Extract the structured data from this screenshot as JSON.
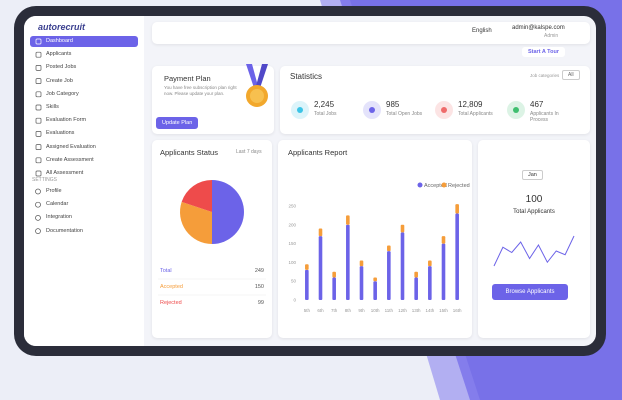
{
  "sidebar": {
    "logo": "autorecruit",
    "menu": [
      "Dashboard",
      "Applicants",
      "Posted Jobs",
      "Create Job",
      "Job Category",
      "Skills",
      "Evaluation Form",
      "Evaluations",
      "Assigned Evaluation",
      "Create Assessment",
      "All Assessment"
    ],
    "settings_heading": "SETTINGS",
    "settings": [
      "Profile",
      "Calendar",
      "Integration",
      "Documentation"
    ]
  },
  "header": {
    "language": "English",
    "email": "admin@kalspe.com",
    "role": "Admin",
    "tour_button": "Start A Tour"
  },
  "payment_plan": {
    "title": "Payment Plan",
    "text": "You have free subscription plan right now. Please update your plan.",
    "button": "Update Plan"
  },
  "statistics": {
    "title": "Statistics",
    "filter_label": "Job categories",
    "filter": "All",
    "items": [
      {
        "value": "2,245",
        "label": "Total Jobs",
        "color": "#3cc4e6"
      },
      {
        "value": "985",
        "label": "Total Open Jobs",
        "color": "#6c63e8"
      },
      {
        "value": "12,809",
        "label": "Total Applicants",
        "color": "#ef6b6b"
      },
      {
        "value": "467",
        "label": "Applicants In Process",
        "color": "#3fbf6f"
      }
    ]
  },
  "applicants_status": {
    "title": "Applicants Status",
    "period": "Last 7 days",
    "rows": [
      {
        "label": "Total",
        "value": 249,
        "color": "#6c63e8"
      },
      {
        "label": "Accepted",
        "value": 150,
        "color": "#f59d3a"
      },
      {
        "label": "Rejected",
        "value": 99,
        "color": "#ee4b4b"
      }
    ]
  },
  "applicants_report": {
    "title": "Applicants Report",
    "ylim": [
      0,
      250
    ],
    "yticks": [
      0,
      50,
      100,
      150,
      200,
      250
    ],
    "categories": [
      "5th",
      "6th",
      "7th",
      "8th",
      "9th",
      "10th",
      "11th",
      "12th",
      "13th",
      "14th",
      "15th",
      "16th"
    ],
    "series": [
      {
        "name": "Accepted",
        "color": "#6c63e8",
        "values": [
          80,
          170,
          60,
          200,
          90,
          50,
          130,
          180,
          60,
          90,
          150,
          230
        ]
      },
      {
        "name": "Rejected",
        "color": "#f59d3a",
        "values": [
          15,
          20,
          15,
          25,
          15,
          10,
          15,
          20,
          15,
          15,
          20,
          25
        ]
      }
    ]
  },
  "total_applicants": {
    "month": "Jan",
    "value": 100,
    "label": "Total Applicants",
    "trend": [
      30,
      55,
      48,
      62,
      40,
      58,
      35,
      50,
      45,
      70
    ],
    "button": "Browse Applicants"
  }
}
